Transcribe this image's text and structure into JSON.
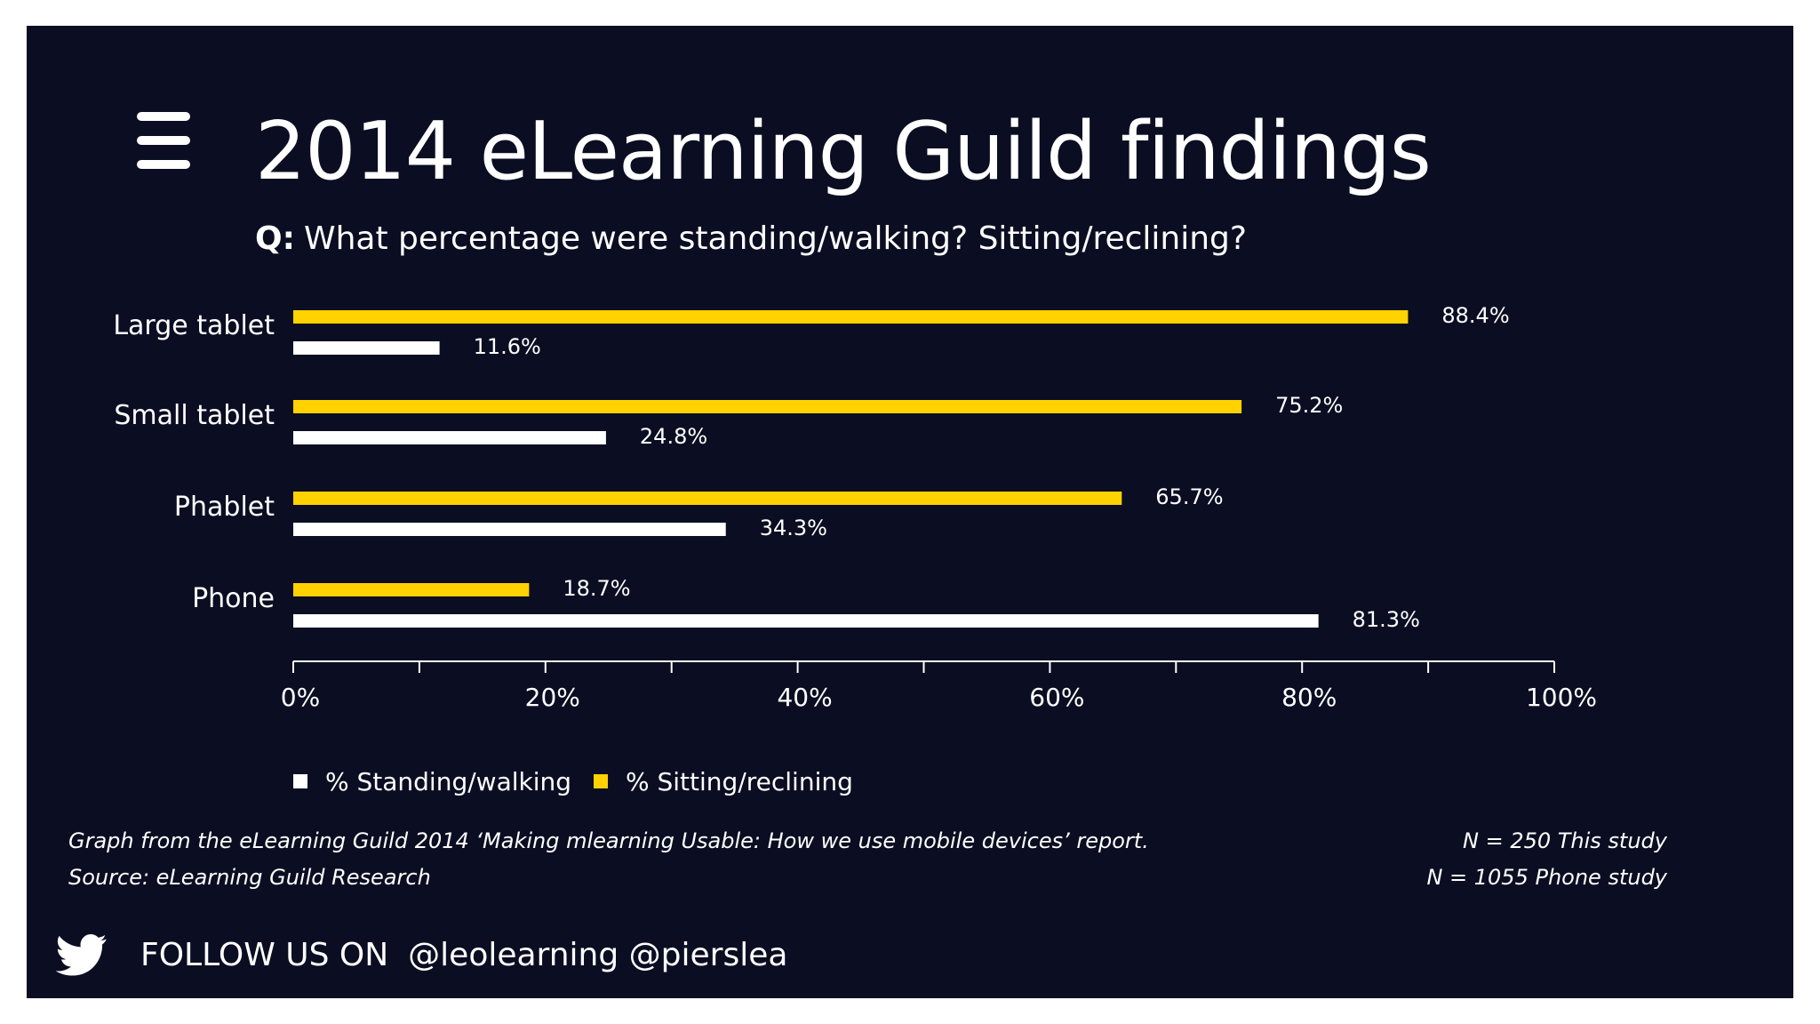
{
  "header": {
    "title": "2014 eLearning Guild findings",
    "question_prefix": "Q:",
    "question": "What percentage were standing/walking? Sitting/reclining?"
  },
  "chart_data": {
    "type": "bar",
    "orientation": "horizontal",
    "categories": [
      "Large tablet",
      "Small tablet",
      "Phablet",
      "Phone"
    ],
    "series": [
      {
        "name": "% Sitting/reclining",
        "color": "#ffd200",
        "values": [
          88.4,
          75.2,
          65.7,
          18.7
        ],
        "labels": [
          "88.4%",
          "75.2%",
          "65.7%",
          "18.7%"
        ]
      },
      {
        "name": "% Standing/walking",
        "color": "#ffffff",
        "values": [
          11.6,
          24.8,
          34.3,
          81.3
        ],
        "labels": [
          "11.6%",
          "24.8%",
          "34.3%",
          "81.3%"
        ]
      }
    ],
    "x_ticks": [
      0,
      20,
      40,
      60,
      80,
      100
    ],
    "x_tick_labels": [
      "0%",
      "20%",
      "40%",
      "60%",
      "80%",
      "100%"
    ],
    "xlim": [
      0,
      100
    ],
    "grid": false,
    "legend_position": "bottom-left",
    "legend_order": [
      "% Standing/walking",
      "% Sitting/reclining"
    ]
  },
  "footnotes": {
    "graph_source": "Graph from the eLearning Guild 2014 ‘Making mlearning Usable: How we use mobile devices’ report.",
    "source": "Source: eLearning Guild Research",
    "n_this_study": "N = 250 This study",
    "n_phone_study": "N = 1055 Phone study"
  },
  "footer": {
    "icon": "twitter-bird-icon",
    "follow_label": "FOLLOW US ON",
    "handles": "@leolearning @pierslea"
  },
  "colors": {
    "background": "#0b0e22",
    "accent": "#ffd200",
    "text": "#ffffff"
  }
}
